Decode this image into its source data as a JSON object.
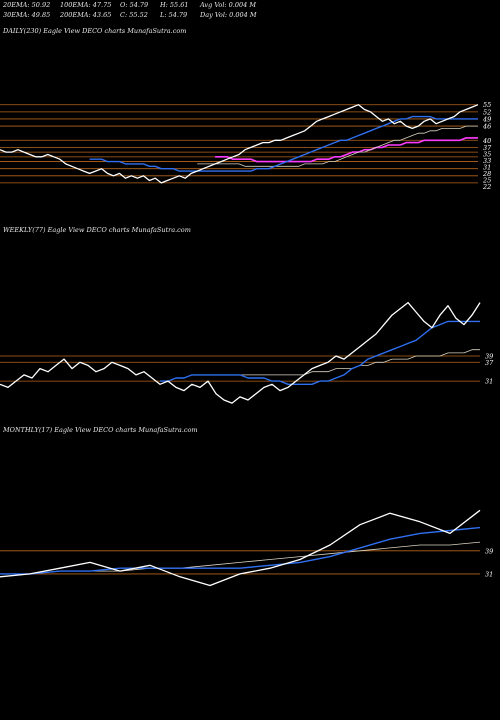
{
  "header": {
    "ema20": "20EMA: 50.92",
    "ema100": "100EMA: 47.75",
    "open": "O: 54.79",
    "high": "H: 55.61",
    "avgvol": "Avg Vol: 0.004 M",
    "ema30": "30EMA: 49.85",
    "ema200": "200EMA: 43.65",
    "close": "C: 55.52",
    "low": "L: 54.79",
    "dayvol": "Day Vol: 0.004 M"
  },
  "colors": {
    "background": "#000000",
    "price": "#ffffff",
    "ema_fast": "#2f6ff0",
    "ema_slow": "#ff3cff",
    "ma_lines": "#d8d2c0",
    "level_lines": "#b5651d"
  },
  "chart_data": [
    {
      "type": "line",
      "title": "DAILY(230) Eagle   View  DECO charts MunafaSutra.com",
      "ylim": [
        19,
        57
      ],
      "y_tick_labels": [
        "55",
        "52",
        "49",
        "46",
        "40",
        "37",
        "35",
        "33",
        "31",
        "28",
        "25",
        "22"
      ],
      "levels": [
        55,
        52,
        49,
        46,
        40,
        37,
        35,
        33,
        31,
        28,
        25,
        22
      ],
      "series": [
        {
          "values": [
            36,
            35,
            35,
            36,
            35,
            34,
            33,
            33,
            34,
            33,
            32,
            30,
            29,
            28,
            27,
            26,
            27,
            28,
            26,
            25,
            26,
            24,
            25,
            24,
            25,
            23,
            24,
            22,
            23,
            24,
            25,
            24,
            26,
            27,
            28,
            29,
            30,
            31,
            32,
            33,
            34,
            36,
            37,
            38,
            39,
            39,
            40,
            40,
            41,
            42,
            43,
            44,
            46,
            48,
            49,
            50,
            51,
            52,
            53,
            54,
            55,
            53,
            52,
            50,
            48,
            49,
            47,
            48,
            46,
            45,
            46,
            48,
            49,
            47,
            48,
            49,
            50,
            52,
            53,
            54,
            55
          ]
        },
        {
          "values": [
            32,
            32,
            32,
            31,
            31,
            31,
            30,
            30,
            30,
            30,
            29,
            29,
            28,
            28,
            28,
            27,
            27,
            27,
            27,
            27,
            27,
            27,
            27,
            27,
            27,
            27,
            27,
            27,
            28,
            28,
            28,
            29,
            30,
            31,
            32,
            33,
            34,
            35,
            36,
            37,
            38,
            39,
            40,
            40,
            41,
            42,
            43,
            44,
            45,
            46,
            47,
            48,
            49,
            49,
            50,
            50,
            50,
            50,
            49,
            49,
            49,
            49,
            49,
            49,
            49,
            49
          ]
        },
        {
          "values": [
            30,
            30,
            30,
            30,
            30,
            30,
            30,
            30,
            29,
            29,
            29,
            29,
            29,
            29,
            29,
            29,
            29,
            29,
            30,
            30,
            30,
            30,
            31,
            31,
            32,
            33,
            34,
            35,
            35,
            36,
            37,
            38,
            39,
            40,
            40,
            41,
            42,
            43,
            43,
            44,
            44,
            45,
            45,
            45,
            45,
            46,
            46,
            46
          ]
        },
        {
          "values": [
            33,
            33,
            33,
            32,
            32,
            32,
            32,
            31,
            31,
            31,
            31,
            31,
            31,
            31,
            31,
            31,
            31,
            32,
            32,
            32,
            33,
            33,
            34,
            35,
            35,
            36,
            36,
            37,
            37,
            38,
            38,
            38,
            39,
            39,
            39,
            40,
            40,
            40,
            40,
            40,
            40,
            40,
            41,
            41,
            41
          ]
        }
      ]
    },
    {
      "type": "line",
      "title": "WEEKLY(77) Eagle   View  DECO charts MunafaSutra.com",
      "ylim": [
        25,
        60
      ],
      "y_tick_labels": [
        "39",
        "37",
        "31"
      ],
      "levels": [
        39,
        37,
        31
      ],
      "series": [
        {
          "values": [
            30,
            29,
            31,
            33,
            32,
            35,
            34,
            36,
            38,
            35,
            37,
            36,
            34,
            35,
            37,
            36,
            35,
            33,
            34,
            32,
            30,
            31,
            29,
            28,
            30,
            29,
            31,
            27,
            25,
            24,
            26,
            25,
            27,
            29,
            30,
            28,
            29,
            31,
            33,
            35,
            36,
            37,
            39,
            38,
            40,
            42,
            44,
            46,
            49,
            52,
            54,
            56,
            53,
            50,
            48,
            52,
            55,
            51,
            49,
            52,
            56
          ]
        },
        {
          "values": [
            31,
            31,
            32,
            32,
            33,
            33,
            33,
            33,
            33,
            33,
            33,
            32,
            32,
            32,
            31,
            31,
            30,
            30,
            30,
            30,
            31,
            31,
            32,
            33,
            35,
            36,
            38,
            39,
            40,
            41,
            42,
            43,
            44,
            46,
            48,
            49,
            50,
            50,
            50,
            50,
            50
          ]
        },
        {
          "values": [
            33,
            33,
            33,
            33,
            33,
            33,
            33,
            33,
            33,
            33,
            33,
            33,
            33,
            33,
            34,
            34,
            34,
            35,
            35,
            35,
            36,
            36,
            37,
            37,
            38,
            38,
            38,
            39,
            39,
            39,
            39,
            40,
            40,
            40,
            41,
            41
          ]
        }
      ]
    },
    {
      "type": "line",
      "title": "MONTHLY(17) Eagle   View  DECO charts MunafaSutra.com",
      "ylim": [
        22,
        60
      ],
      "y_tick_labels": [
        "39",
        "31"
      ],
      "levels": [
        39,
        31
      ],
      "series": [
        {
          "values": [
            30,
            31,
            33,
            35,
            32,
            34,
            30,
            27,
            31,
            33,
            36,
            41,
            48,
            52,
            49,
            45,
            53
          ]
        },
        {
          "values": [
            31,
            31,
            32,
            32,
            33,
            33,
            33,
            33,
            33,
            34,
            35,
            37,
            40,
            43,
            45,
            46,
            47
          ]
        },
        {
          "values": [
            31,
            31,
            32,
            32,
            32,
            33,
            33,
            34,
            35,
            36,
            37,
            38,
            39,
            40,
            41,
            41,
            42
          ]
        }
      ]
    }
  ]
}
